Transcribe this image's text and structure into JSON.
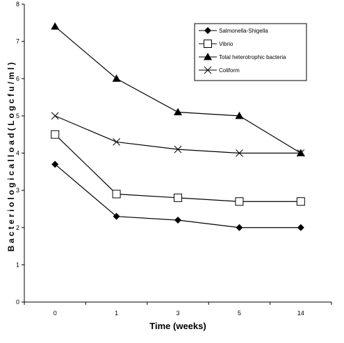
{
  "chart_data": {
    "type": "line",
    "xlabel": "Time (weeks)",
    "ylabel": "B a c t e r i o l o g i c a l   l o a d   ( L o g c f u / m l )",
    "categories": [
      "0",
      "1",
      "3",
      "5",
      "14"
    ],
    "ylim": [
      0,
      8
    ],
    "yticks": [
      0,
      1,
      2,
      3,
      4,
      5,
      6,
      7,
      8
    ],
    "grid": false,
    "legend_position": "top-right",
    "series": [
      {
        "name": "Salmonella-Shigella",
        "marker": "diamond",
        "values": [
          3.7,
          2.3,
          2.2,
          2.0,
          2.0
        ]
      },
      {
        "name": "Vibrio",
        "marker": "square-open",
        "values": [
          4.5,
          2.9,
          2.8,
          2.7,
          2.7
        ]
      },
      {
        "name": "Total heterotrophic bacteria",
        "marker": "triangle",
        "values": [
          7.4,
          6.0,
          5.1,
          5.0,
          4.0
        ]
      },
      {
        "name": "Coliform",
        "marker": "x",
        "values": [
          5.0,
          4.3,
          4.1,
          4.0,
          4.0
        ]
      }
    ]
  }
}
